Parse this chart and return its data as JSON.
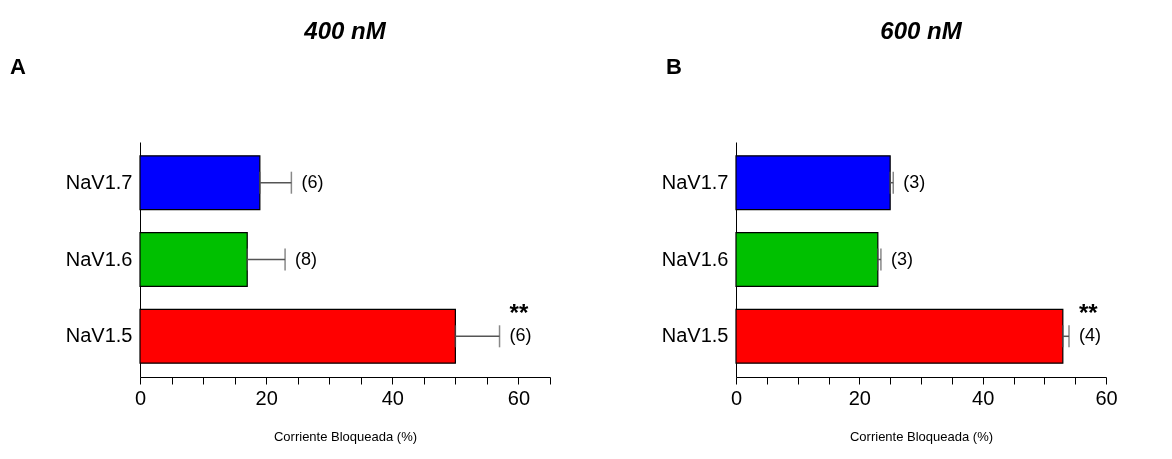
{
  "chart_data": [
    {
      "type": "bar",
      "orientation": "horizontal",
      "title": "400 nM",
      "xlabel": "Corriente Bloqueada (%)",
      "categories": [
        "NaV1.7",
        "NaV1.6",
        "NaV1.5"
      ],
      "values": [
        19,
        17,
        50
      ],
      "colors": [
        "#0000ff",
        "#00c000",
        "#ff0000"
      ],
      "errors": [
        [
          19,
          24
        ],
        [
          17,
          23
        ],
        [
          50,
          57
        ]
      ],
      "xlim": [
        0,
        65
      ],
      "xticks": [
        0,
        {
          "value": 5,
          "label": null
        },
        {
          "value": 10,
          "label": null
        },
        {
          "value": 15,
          "label": null
        },
        20,
        {
          "value": 25,
          "label": null
        },
        {
          "value": 30,
          "label": null
        },
        {
          "value": 35,
          "label": null
        },
        40,
        {
          "value": 45,
          "label": null
        },
        {
          "value": 50,
          "label": null
        },
        {
          "value": 55,
          "label": null
        },
        60,
        {
          "value": 65,
          "label": null
        }
      ],
      "grid": false,
      "annotations": [
        "A",
        {
          "text": "(6)",
          "x": 24,
          "y": "NaV1.7"
        },
        {
          "text": "(8)",
          "x": 23,
          "y": "NaV1.6"
        },
        {
          "text": "(6)",
          "x": 57,
          "y": "NaV1.5"
        },
        {
          "text": "**",
          "x": 57,
          "y": "NaV1.5"
        }
      ]
    },
    {
      "type": "bar",
      "orientation": "horizontal",
      "title": "600 nM",
      "xlabel": "Corriente Bloqueada (%)",
      "categories": [
        "NaV1.7",
        "NaV1.6",
        "NaV1.5"
      ],
      "values": [
        25,
        23,
        53
      ],
      "colors": [
        "#0000ff",
        "#00c000",
        "#ff0000"
      ],
      "errors": [
        [
          25,
          25.5
        ],
        [
          23,
          23.5
        ],
        [
          53,
          54
        ]
      ],
      "xlim": [
        0,
        60
      ],
      "xticks": [
        0,
        {
          "value": 5,
          "label": null
        },
        {
          "value": 10,
          "label": null
        },
        {
          "value": 15,
          "label": null
        },
        20,
        {
          "value": 25,
          "label": null
        },
        {
          "value": 30,
          "label": null
        },
        {
          "value": 35,
          "label": null
        },
        40,
        {
          "value": 45,
          "label": null
        },
        {
          "value": 50,
          "label": null
        },
        {
          "value": 55,
          "label": null
        },
        60
      ],
      "grid": false,
      "annotations": [
        "B",
        {
          "text": "(3)",
          "x": 25.5,
          "y": "NaV1.7"
        },
        {
          "text": "(3)",
          "x": 23.5,
          "y": "NaV1.6"
        },
        {
          "text": "(4)",
          "x": 54,
          "y": "NaV1.5"
        },
        {
          "text": "**",
          "x": 54,
          "y": "NaV1.5"
        }
      ]
    }
  ]
}
